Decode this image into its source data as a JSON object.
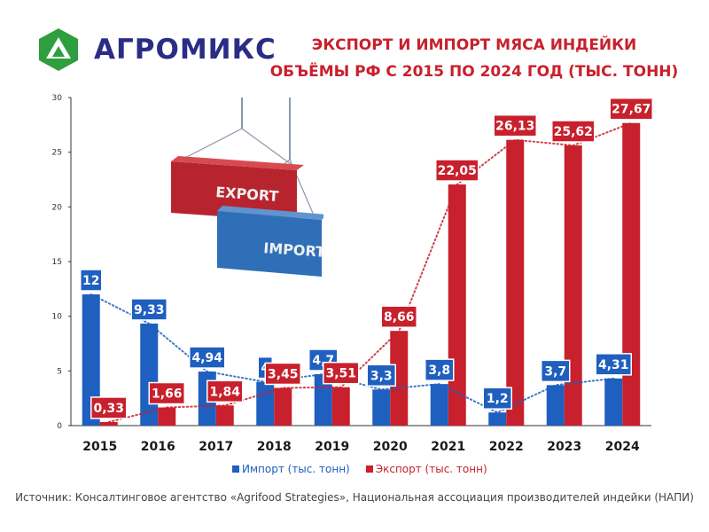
{
  "brand": {
    "name": "АГРОМИКС",
    "mark_color": "#2e9e3e",
    "text_color": "#2b2c86"
  },
  "title": {
    "line1": "ЭКСПОРТ И ИМПОРТ МЯСА ИНДЕЙКИ",
    "line2": "ОБЪЁМЫ РФ С 2015 ПО 2024 ГОД (ТЫС. ТОНН)"
  },
  "illustration": {
    "export_label": "EXPORT",
    "import_label": "IMPORT"
  },
  "legend": {
    "import": "Импорт (тыс. тонн)",
    "export": "Экспорт (тыс. тонн)"
  },
  "source": "Источник: Консалтинговое агентство «Agrifood Strategies», Национальная ассоциация производителей индейки (НАПИ)",
  "colors": {
    "import": "#1f5fbf",
    "export": "#c8202c"
  },
  "chart_data": {
    "type": "bar",
    "categories": [
      "2015",
      "2016",
      "2017",
      "2018",
      "2019",
      "2020",
      "2021",
      "2022",
      "2023",
      "2024"
    ],
    "series": [
      {
        "name": "Импорт (тыс. тонн)",
        "color": "#1f5fbf",
        "values": [
          12,
          9.33,
          4.94,
          4,
          4.7,
          3.3,
          3.8,
          1.2,
          3.7,
          4.31
        ],
        "labels": [
          "12",
          "9,33",
          "4,94",
          "4",
          "4,7",
          "3,3",
          "3,8",
          "1,2",
          "3,7",
          "4,31"
        ]
      },
      {
        "name": "Экспорт (тыс. тонн)",
        "color": "#c8202c",
        "values": [
          0.33,
          1.66,
          1.84,
          3.45,
          3.51,
          8.66,
          22.05,
          26.13,
          25.62,
          27.67
        ],
        "labels": [
          "0,33",
          "1,66",
          "1,84",
          "3,45",
          "3,51",
          "8,66",
          "22,05",
          "26,13",
          "25,62",
          "27,67"
        ]
      }
    ],
    "ylim": [
      0,
      30
    ],
    "yticks": [
      "0",
      "5",
      "10",
      "15",
      "20",
      "25",
      "30"
    ],
    "trendlines": "dotted",
    "legend_position": "bottom",
    "grid": false
  }
}
